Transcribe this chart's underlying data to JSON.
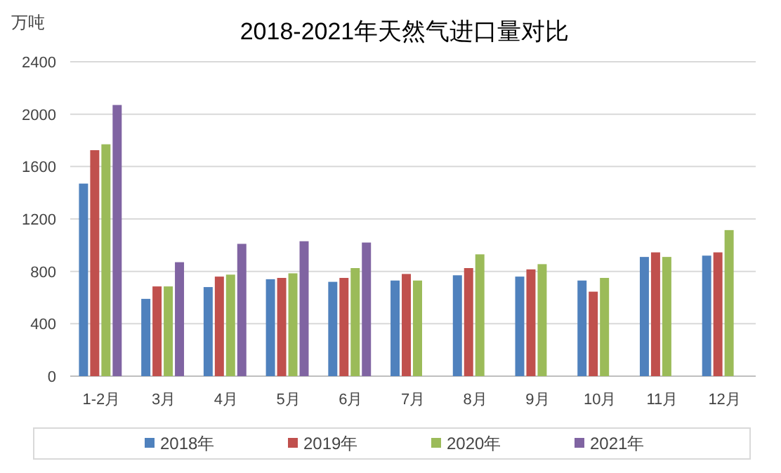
{
  "chart_data": {
    "type": "bar",
    "title": "2018-2021年天然气进口量对比",
    "ylabel": "万吨",
    "categories": [
      "1-2月",
      "3月",
      "4月",
      "5月",
      "6月",
      "7月",
      "8月",
      "9月",
      "10月",
      "11月",
      "12月"
    ],
    "series": [
      {
        "name": "2018年",
        "color": "#4f81bd",
        "values": [
          1470,
          590,
          680,
          740,
          720,
          730,
          770,
          760,
          730,
          910,
          920
        ]
      },
      {
        "name": "2019年",
        "color": "#c0504d",
        "values": [
          1725,
          685,
          760,
          750,
          750,
          780,
          825,
          815,
          645,
          945,
          945
        ]
      },
      {
        "name": "2020年",
        "color": "#9bbb59",
        "values": [
          1770,
          685,
          775,
          785,
          825,
          730,
          930,
          855,
          750,
          910,
          1115
        ]
      },
      {
        "name": "2021年",
        "color": "#8064a2",
        "values": [
          2070,
          870,
          1010,
          1030,
          1020,
          null,
          null,
          null,
          null,
          null,
          null
        ]
      }
    ],
    "ylim": [
      0,
      2400
    ],
    "yticks": [
      0,
      400,
      800,
      1200,
      1600,
      2000,
      2400
    ],
    "grid": "y",
    "legend": "bottom"
  }
}
